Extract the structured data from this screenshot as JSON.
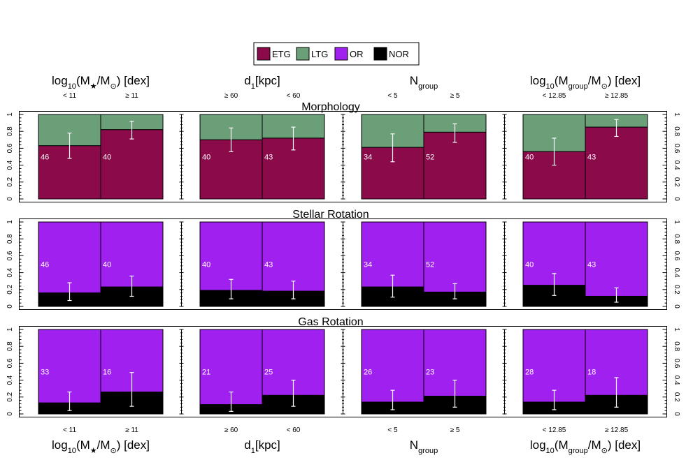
{
  "legend": [
    {
      "key": "etg",
      "label": "ETG",
      "color": "#8b0a4a"
    },
    {
      "key": "ltg",
      "label": "LTG",
      "color": "#6a9f78"
    },
    {
      "key": "or",
      "label": "OR",
      "color": "#a020f0"
    },
    {
      "key": "nor",
      "label": "NOR",
      "color": "#000000"
    }
  ],
  "columns": [
    {
      "title_parts": [
        [
          "log",
          ""
        ],
        [
          "10",
          "sub"
        ],
        [
          "(M",
          ""
        ],
        [
          "★",
          "sub"
        ],
        [
          "/M",
          ""
        ],
        [
          "⊙",
          "sub"
        ],
        [
          ") [dex]",
          ""
        ]
      ],
      "bin_labels": [
        "< 11",
        "≥ 11"
      ]
    },
    {
      "title_parts": [
        [
          "d",
          ""
        ],
        [
          "1",
          "sub"
        ],
        [
          "[kpc]",
          ""
        ]
      ],
      "bin_labels": [
        "≥ 60",
        "< 60"
      ]
    },
    {
      "title_parts": [
        [
          "N",
          ""
        ],
        [
          "group",
          "sub"
        ]
      ],
      "bin_labels": [
        "< 5",
        "≥ 5"
      ]
    },
    {
      "title_parts": [
        [
          "log",
          ""
        ],
        [
          "10",
          "sub"
        ],
        [
          "(M",
          ""
        ],
        [
          "group",
          "sub"
        ],
        [
          "/M",
          ""
        ],
        [
          "⊙",
          "sub"
        ],
        [
          ") [dex]",
          ""
        ]
      ],
      "bin_labels": [
        "< 12.85",
        "≥ 12.85"
      ]
    }
  ],
  "chart_data": [
    {
      "type": "bar",
      "title": "Morphology",
      "stack": [
        "etg",
        "ltg"
      ],
      "ylim": [
        0,
        1
      ],
      "yticks": [
        "0",
        "0.2",
        "0.4",
        "0.6",
        "0.8",
        "1"
      ],
      "panels": [
        {
          "bars": [
            {
              "n": "46",
              "value": 0.63,
              "err": [
                0.48,
                0.78
              ]
            },
            {
              "n": "40",
              "value": 0.82,
              "err": [
                0.71,
                0.92
              ]
            }
          ]
        },
        {
          "bars": [
            {
              "n": "40",
              "value": 0.7,
              "err": [
                0.56,
                0.84
              ]
            },
            {
              "n": "43",
              "value": 0.72,
              "err": [
                0.58,
                0.85
              ]
            }
          ]
        },
        {
          "bars": [
            {
              "n": "34",
              "value": 0.61,
              "err": [
                0.44,
                0.77
              ]
            },
            {
              "n": "52",
              "value": 0.79,
              "err": [
                0.67,
                0.89
              ]
            }
          ]
        },
        {
          "bars": [
            {
              "n": "40",
              "value": 0.56,
              "err": [
                0.4,
                0.72
              ]
            },
            {
              "n": "43",
              "value": 0.85,
              "err": [
                0.74,
                0.94
              ]
            }
          ]
        }
      ]
    },
    {
      "type": "bar",
      "title": "Stellar Rotation",
      "stack": [
        "nor",
        "or"
      ],
      "ylim": [
        0,
        1
      ],
      "yticks": [
        "0",
        "0.2",
        "0.4",
        "0.6",
        "0.8",
        "1"
      ],
      "panels": [
        {
          "bars": [
            {
              "n": "46",
              "value": 0.16,
              "err": [
                0.07,
                0.28
              ]
            },
            {
              "n": "40",
              "value": 0.23,
              "err": [
                0.12,
                0.36
              ]
            }
          ]
        },
        {
          "bars": [
            {
              "n": "40",
              "value": 0.19,
              "err": [
                0.09,
                0.32
              ]
            },
            {
              "n": "43",
              "value": 0.18,
              "err": [
                0.09,
                0.3
              ]
            }
          ]
        },
        {
          "bars": [
            {
              "n": "34",
              "value": 0.23,
              "err": [
                0.11,
                0.37
              ]
            },
            {
              "n": "52",
              "value": 0.17,
              "err": [
                0.09,
                0.27
              ]
            }
          ]
        },
        {
          "bars": [
            {
              "n": "40",
              "value": 0.25,
              "err": [
                0.13,
                0.39
              ]
            },
            {
              "n": "43",
              "value": 0.12,
              "err": [
                0.05,
                0.22
              ]
            }
          ]
        }
      ]
    },
    {
      "type": "bar",
      "title": "Gas Rotation",
      "stack": [
        "nor",
        "or"
      ],
      "ylim": [
        0,
        1
      ],
      "yticks": [
        "0",
        "0.2",
        "0.4",
        "0.6",
        "0.8",
        "1"
      ],
      "panels": [
        {
          "bars": [
            {
              "n": "33",
              "value": 0.13,
              "err": [
                0.04,
                0.26
              ]
            },
            {
              "n": "16",
              "value": 0.26,
              "err": [
                0.09,
                0.49
              ]
            }
          ]
        },
        {
          "bars": [
            {
              "n": "21",
              "value": 0.11,
              "err": [
                0.03,
                0.26
              ]
            },
            {
              "n": "25",
              "value": 0.22,
              "err": [
                0.09,
                0.4
              ]
            }
          ]
        },
        {
          "bars": [
            {
              "n": "26",
              "value": 0.14,
              "err": [
                0.05,
                0.28
              ]
            },
            {
              "n": "23",
              "value": 0.21,
              "err": [
                0.08,
                0.4
              ]
            }
          ]
        },
        {
          "bars": [
            {
              "n": "28",
              "value": 0.14,
              "err": [
                0.05,
                0.28
              ]
            },
            {
              "n": "18",
              "value": 0.22,
              "err": [
                0.08,
                0.43
              ]
            }
          ]
        }
      ]
    }
  ]
}
